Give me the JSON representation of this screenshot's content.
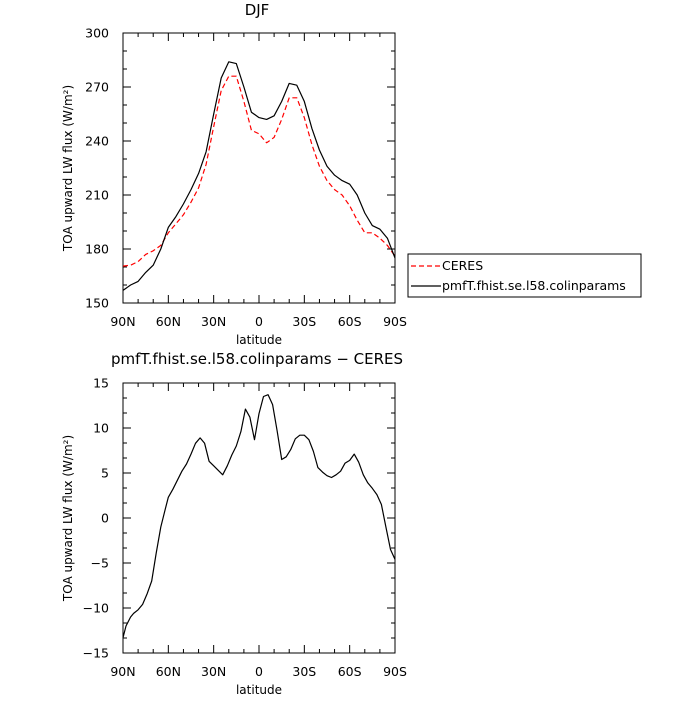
{
  "chart_data": [
    {
      "type": "line",
      "title": "DJF",
      "xlabel": "latitude",
      "ylabel": "TOA upward LW flux (W/m²)",
      "xlim": [
        90,
        -90
      ],
      "ylim": [
        150,
        300
      ],
      "x_tick_values": [
        90,
        60,
        30,
        0,
        -30,
        -60,
        -90
      ],
      "x_tick_labels": [
        "90N",
        "60N",
        "30N",
        "0",
        "30S",
        "60S",
        "90S"
      ],
      "y_tick_labels": [
        "150",
        "180",
        "210",
        "240",
        "270",
        "300"
      ],
      "legend_position": "right",
      "series": [
        {
          "name": "CERES",
          "color": "#ff0000",
          "dash": "dashed",
          "x": [
            90,
            85,
            80,
            75,
            70,
            65,
            60,
            55,
            50,
            45,
            40,
            35,
            30,
            25,
            20,
            15,
            10,
            5,
            0,
            -5,
            -10,
            -15,
            -20,
            -25,
            -30,
            -35,
            -40,
            -45,
            -50,
            -55,
            -60,
            -65,
            -70,
            -75,
            -80,
            -85,
            -90
          ],
          "y": [
            170.5,
            171,
            173,
            177,
            179,
            182,
            189,
            194,
            199,
            206,
            214,
            227,
            248,
            268,
            276,
            276,
            262,
            246,
            244,
            239,
            242,
            252,
            264,
            264,
            253,
            238,
            226,
            218,
            213,
            210,
            204,
            196,
            189,
            189,
            186,
            182,
            176
          ]
        },
        {
          "name": "pmfT.fhist.se.l58.colinparams",
          "color": "#000000",
          "dash": "solid",
          "x": [
            90,
            85,
            80,
            75,
            70,
            65,
            60,
            55,
            50,
            45,
            40,
            35,
            30,
            25,
            20,
            15,
            10,
            5,
            0,
            -5,
            -10,
            -15,
            -20,
            -25,
            -30,
            -35,
            -40,
            -45,
            -50,
            -55,
            -60,
            -65,
            -70,
            -75,
            -80,
            -85,
            -90
          ],
          "y": [
            157,
            160,
            162,
            167,
            171,
            180,
            192,
            198,
            205,
            213,
            222,
            234,
            255,
            275,
            284,
            283,
            270,
            256,
            253,
            252,
            254,
            262,
            272,
            271,
            262,
            247,
            235,
            226,
            221,
            218,
            216,
            210,
            200,
            193,
            191,
            186,
            175
          ]
        }
      ]
    },
    {
      "type": "line",
      "title": "pmfT.fhist.se.l58.colinparams − CERES",
      "xlabel": "latitude",
      "ylabel": "TOA upward LW flux (W/m²)",
      "xlim": [
        90,
        -90
      ],
      "ylim": [
        -15,
        15
      ],
      "x_tick_values": [
        90,
        60,
        30,
        0,
        -30,
        -60,
        -90
      ],
      "x_tick_labels": [
        "90N",
        "60N",
        "30N",
        "0",
        "30S",
        "60S",
        "90S"
      ],
      "y_tick_values": [
        -15,
        -10,
        -5,
        0,
        5,
        10,
        15
      ],
      "y_tick_labels": [
        "−15",
        "−10",
        "−5",
        "0",
        "5",
        "10",
        "15"
      ],
      "series": [
        {
          "color": "#000000",
          "dash": "solid",
          "x": [
            90,
            88,
            85,
            83,
            80,
            77,
            74,
            71,
            68,
            65,
            62,
            60,
            57,
            54,
            51,
            48,
            45,
            42,
            39,
            36,
            33,
            30,
            27,
            24,
            21,
            18,
            15,
            12,
            9,
            6,
            3,
            0,
            -3,
            -6,
            -9,
            -12,
            -15,
            -18,
            -21,
            -24,
            -27,
            -30,
            -33,
            -36,
            -39,
            -42,
            -45,
            -48,
            -51,
            -54,
            -57,
            -60,
            -63,
            -66,
            -69,
            -72,
            -75,
            -78,
            -81,
            -84,
            -87,
            -90
          ],
          "y": [
            -13.3,
            -12,
            -11,
            -10.6,
            -10.2,
            -9.6,
            -8.4,
            -7,
            -3.9,
            -1,
            1,
            2.3,
            3.2,
            4.2,
            5.2,
            6,
            7.1,
            8.3,
            8.9,
            8.3,
            6.3,
            5.8,
            5.3,
            4.8,
            5.8,
            7,
            8,
            9.6,
            12.1,
            11.2,
            8.7,
            11.6,
            13.5,
            13.7,
            12.6,
            9.7,
            6.5,
            6.8,
            7.6,
            8.8,
            9.2,
            9.2,
            8.7,
            7.4,
            5.6,
            5.1,
            4.7,
            4.5,
            4.8,
            5.2,
            6.1,
            6.4,
            7.1,
            6.2,
            4.8,
            3.9,
            3.3,
            2.6,
            1.5,
            -1,
            -3.5,
            -4.6
          ]
        }
      ]
    }
  ]
}
